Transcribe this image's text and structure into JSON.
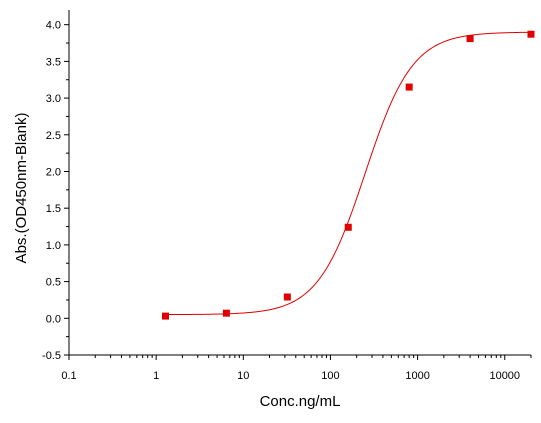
{
  "chart_data": {
    "type": "scatter",
    "title": "",
    "xlabel": "Conc.ng/mL",
    "ylabel": "Abs.(OD450nm-Blank)",
    "x_scale": "log",
    "xlim": [
      0.1,
      20000
    ],
    "ylim": [
      -0.5,
      4.2
    ],
    "x_ticks": [
      0.1,
      1,
      10,
      100,
      1000,
      10000
    ],
    "x_tick_labels": [
      "0.1",
      "1",
      "10",
      "100",
      "1000",
      "10000"
    ],
    "y_ticks": [
      -0.5,
      0.0,
      0.5,
      1.0,
      1.5,
      2.0,
      2.5,
      3.0,
      3.5,
      4.0
    ],
    "y_tick_labels": [
      "-0.5",
      "0.0",
      "0.5",
      "1.0",
      "1.5",
      "2.0",
      "2.5",
      "3.0",
      "3.5",
      "4.0"
    ],
    "grid": false,
    "legend": "none",
    "colors": {
      "series": "#e00000",
      "axis": "#000000"
    },
    "series": [
      {
        "x": [
          1.28,
          6.4,
          32,
          160,
          800,
          4000,
          20000
        ],
        "y": [
          0.03,
          0.07,
          0.29,
          1.24,
          3.15,
          3.81,
          3.87
        ],
        "marker": "square",
        "fit": {
          "model": "4PL",
          "bottom": 0.05,
          "top": 3.9,
          "ec50": 250,
          "hill": 1.6,
          "x_range": [
            1.28,
            20000
          ]
        }
      }
    ]
  }
}
